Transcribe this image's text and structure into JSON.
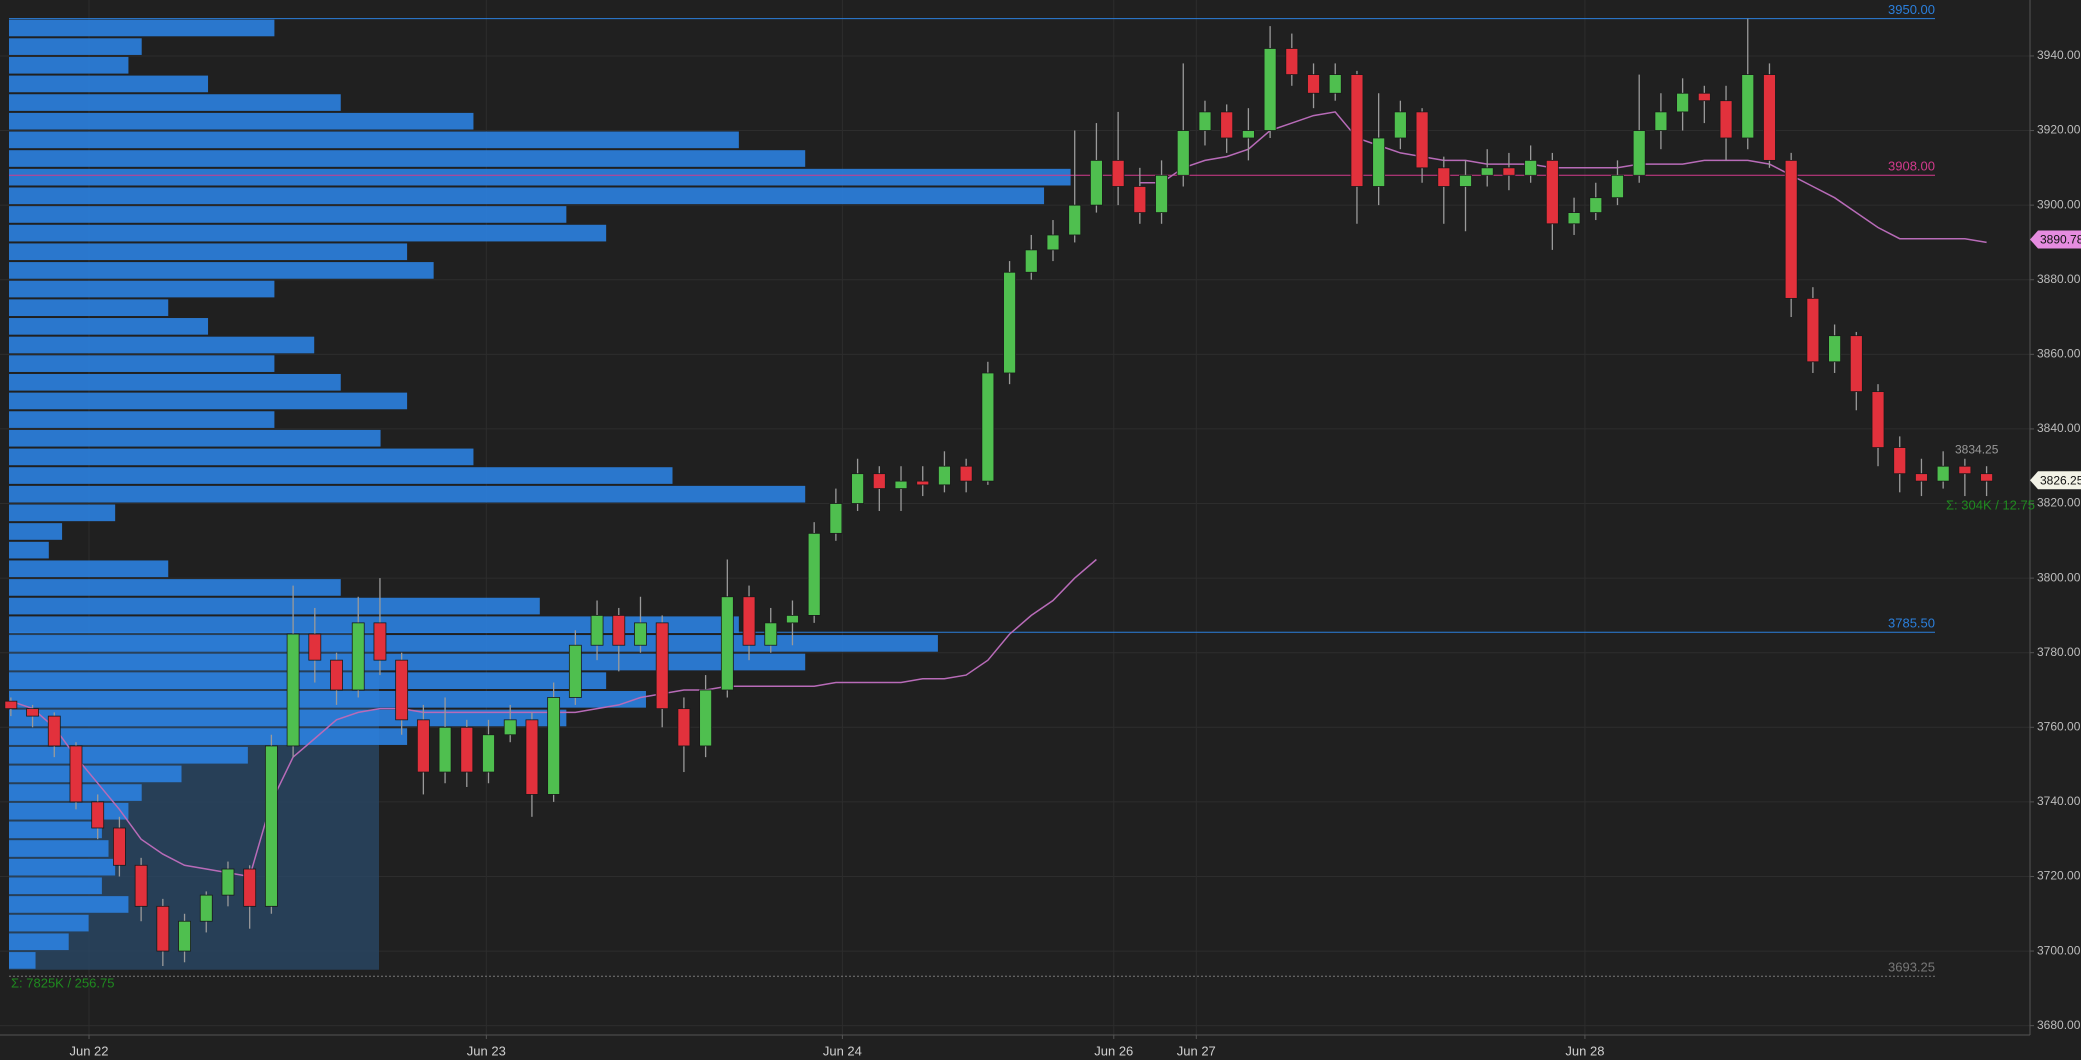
{
  "chart_data": {
    "type": "candlestick",
    "xlim": [
      -0.5,
      93
    ],
    "xticks": [
      {
        "value": 3.6,
        "label": "Jun 22"
      },
      {
        "value": 21.9,
        "label": "Jun 23"
      },
      {
        "value": 38.3,
        "label": "Jun 24"
      },
      {
        "value": 50.8,
        "label": "Jun 26"
      },
      {
        "value": 54.6,
        "label": "Jun 27"
      },
      {
        "value": 72.5,
        "label": "Jun 28"
      }
    ],
    "ylim": [
      3677.5,
      3955
    ],
    "yticks": [
      {
        "value": 3680,
        "label": "3680.00"
      },
      {
        "value": 3700,
        "label": "3700.00"
      },
      {
        "value": 3720,
        "label": "3720.00"
      },
      {
        "value": 3740,
        "label": "3740.00"
      },
      {
        "value": 3760,
        "label": "3760.00"
      },
      {
        "value": 3780,
        "label": "3780.00"
      },
      {
        "value": 3800,
        "label": "3800.00"
      },
      {
        "value": 3820,
        "label": "3820.00"
      },
      {
        "value": 3840,
        "label": "3840.00"
      },
      {
        "value": 3860,
        "label": "3860.00"
      },
      {
        "value": 3880,
        "label": "3880.00"
      },
      {
        "value": 3900,
        "label": "3900.00"
      },
      {
        "value": 3920,
        "label": "3920.00"
      },
      {
        "value": 3940,
        "label": "3940.00"
      }
    ],
    "grid": true,
    "up_color": "#4fbf4f",
    "down_color": "#e2313c",
    "open": [
      3767,
      3765,
      3763,
      3755,
      3740,
      3733,
      3723,
      3712,
      3700,
      3708,
      3715,
      3722,
      3712,
      3755,
      3785,
      3778,
      3770,
      3788,
      3778,
      3762,
      3748,
      3760,
      3748,
      3758,
      3762,
      3742,
      3768,
      3782,
      3790,
      3782,
      3788,
      3765,
      3755,
      3770,
      3795,
      3782,
      3788,
      3790,
      3812,
      3820,
      3828,
      3824,
      3826,
      3825,
      3830,
      3826,
      3855,
      3882,
      3888,
      3892,
      3900,
      3912,
      3905,
      3898,
      3908,
      3920,
      3925,
      3918,
      3920,
      3942,
      3935,
      3930,
      3935,
      3905,
      3918,
      3925,
      3910,
      3905,
      3908,
      3910,
      3908,
      3912,
      3895,
      3898,
      3902,
      3908,
      3920,
      3925,
      3930,
      3928,
      3918,
      3935,
      3912,
      3875,
      3858,
      3865,
      3850,
      3835,
      3828,
      3826,
      3830,
      3828
    ],
    "high": [
      3768,
      3766,
      3764,
      3756,
      3742,
      3736,
      3725,
      3714,
      3710,
      3716,
      3724,
      3723,
      3758,
      3798,
      3792,
      3780,
      3795,
      3800,
      3780,
      3766,
      3768,
      3762,
      3762,
      3766,
      3764,
      3772,
      3786,
      3794,
      3792,
      3795,
      3790,
      3768,
      3774,
      3805,
      3798,
      3792,
      3794,
      3815,
      3824,
      3832,
      3830,
      3830,
      3830,
      3834,
      3832,
      3858,
      3885,
      3892,
      3896,
      3920,
      3922,
      3925,
      3910,
      3912,
      3938,
      3928,
      3927,
      3926,
      3948,
      3946,
      3938,
      3938,
      3936,
      3930,
      3928,
      3926,
      3913,
      3912,
      3915,
      3914,
      3916,
      3914,
      3902,
      3906,
      3912,
      3935,
      3930,
      3934,
      3932,
      3932,
      3950,
      3938,
      3914,
      3878,
      3868,
      3866,
      3852,
      3838,
      3832,
      3834,
      3832,
      3830
    ],
    "low": [
      3763,
      3760,
      3752,
      3738,
      3730,
      3720,
      3708,
      3696,
      3697,
      3705,
      3712,
      3706,
      3710,
      3752,
      3772,
      3766,
      3768,
      3774,
      3758,
      3742,
      3745,
      3744,
      3745,
      3756,
      3736,
      3740,
      3766,
      3778,
      3775,
      3780,
      3760,
      3748,
      3752,
      3768,
      3778,
      3780,
      3782,
      3788,
      3810,
      3818,
      3818,
      3818,
      3822,
      3823,
      3823,
      3825,
      3852,
      3880,
      3885,
      3890,
      3898,
      3900,
      3895,
      3895,
      3905,
      3916,
      3914,
      3912,
      3918,
      3932,
      3926,
      3928,
      3895,
      3900,
      3915,
      3906,
      3895,
      3893,
      3905,
      3904,
      3906,
      3888,
      3892,
      3896,
      3900,
      3906,
      3915,
      3920,
      3922,
      3912,
      3915,
      3910,
      3870,
      3855,
      3855,
      3845,
      3830,
      3823,
      3822,
      3824,
      3822,
      3822
    ],
    "close": [
      3765,
      3763,
      3755,
      3740,
      3733,
      3723,
      3712,
      3700,
      3708,
      3715,
      3722,
      3712,
      3755,
      3785,
      3778,
      3770,
      3788,
      3778,
      3762,
      3748,
      3760,
      3748,
      3758,
      3762,
      3742,
      3768,
      3782,
      3790,
      3782,
      3788,
      3765,
      3755,
      3770,
      3795,
      3782,
      3788,
      3790,
      3812,
      3820,
      3828,
      3824,
      3826,
      3825,
      3830,
      3826,
      3855,
      3882,
      3888,
      3892,
      3900,
      3912,
      3905,
      3898,
      3908,
      3920,
      3925,
      3918,
      3920,
      3942,
      3935,
      3930,
      3935,
      3905,
      3918,
      3925,
      3910,
      3905,
      3908,
      3910,
      3908,
      3912,
      3895,
      3898,
      3902,
      3908,
      3920,
      3925,
      3930,
      3928,
      3918,
      3935,
      3912,
      3875,
      3858,
      3865,
      3850,
      3835,
      3828,
      3826,
      3830,
      3828,
      3826
    ],
    "vwap": {
      "color": "#b86bb8",
      "values": [
        3767,
        3765,
        3760,
        3752,
        3745,
        3738,
        3730,
        3726,
        3723,
        3722,
        3721,
        3720,
        3740,
        3752,
        3757,
        3762,
        3764,
        3765,
        3765,
        3764,
        3764,
        3764,
        3764,
        3764,
        3764,
        3764,
        3764,
        3765,
        3766,
        3768,
        3769,
        3770,
        3770,
        3771,
        3771,
        3771,
        3771,
        3771,
        3772,
        3772,
        3772,
        3772,
        3773,
        3773,
        3774,
        3778,
        3785,
        3790,
        3794,
        3800,
        3805,
        null,
        3906,
        3906,
        3910,
        3912,
        3913,
        3915,
        3920,
        3922,
        3924,
        3925,
        3918,
        3916,
        3914,
        3913,
        3912,
        3912,
        3911,
        3911,
        3911,
        3910,
        3910,
        3910,
        3910,
        3911,
        3911,
        3911,
        3912,
        3912,
        3912,
        3911,
        3908,
        3905,
        3902,
        3898,
        3894,
        3891,
        3891,
        3891,
        3891,
        3890
      ]
    },
    "profile": {
      "color": "#2b7fdc",
      "bins": [
        3695,
        3700,
        3705,
        3710,
        3715,
        3720,
        3725,
        3730,
        3735,
        3740,
        3745,
        3750,
        3755,
        3760,
        3765,
        3770,
        3775,
        3780,
        3785,
        3790,
        3795,
        3800,
        3805,
        3810,
        3815,
        3820,
        3825,
        3830,
        3835,
        3840,
        3845,
        3850,
        3855,
        3860,
        3865,
        3870,
        3875,
        3880,
        3885,
        3890,
        3895,
        3900,
        3905,
        3910,
        3915,
        3920,
        3925,
        3930,
        3935,
        3940,
        3945,
        3950
      ],
      "values": [
        20,
        45,
        60,
        90,
        70,
        80,
        75,
        70,
        90,
        100,
        130,
        180,
        300,
        420,
        480,
        450,
        600,
        700,
        550,
        400,
        250,
        120,
        30,
        40,
        80,
        600,
        500,
        350,
        280,
        200,
        300,
        250,
        200,
        230,
        150,
        120,
        200,
        320,
        300,
        450,
        420,
        780,
        800,
        600,
        550,
        350,
        250,
        150,
        90,
        100,
        200
      ]
    },
    "levels": [
      {
        "value": 3950,
        "label": "3950.00",
        "color": "#2b7fdc"
      },
      {
        "value": 3908,
        "label": "3908.00",
        "color": "#d23a8c"
      },
      {
        "value": 3785.5,
        "label": "3785.50",
        "color": "#2b7fdc"
      },
      {
        "value": 3693.25,
        "label": "3693.25",
        "color": "#777777"
      }
    ],
    "tags": [
      {
        "value": 3890.78,
        "label": "3890.78",
        "color": "#e58ce0"
      },
      {
        "value": 3826.25,
        "label": "3826.25",
        "color": "#f2f2e6"
      }
    ],
    "mini_labels": [
      {
        "value": 3834.25,
        "label": "3834.25"
      }
    ],
    "annotations": [
      {
        "text": "Σ: 7825K / 256.75"
      },
      {
        "text": "Σ: 304K / 12.75"
      }
    ]
  }
}
